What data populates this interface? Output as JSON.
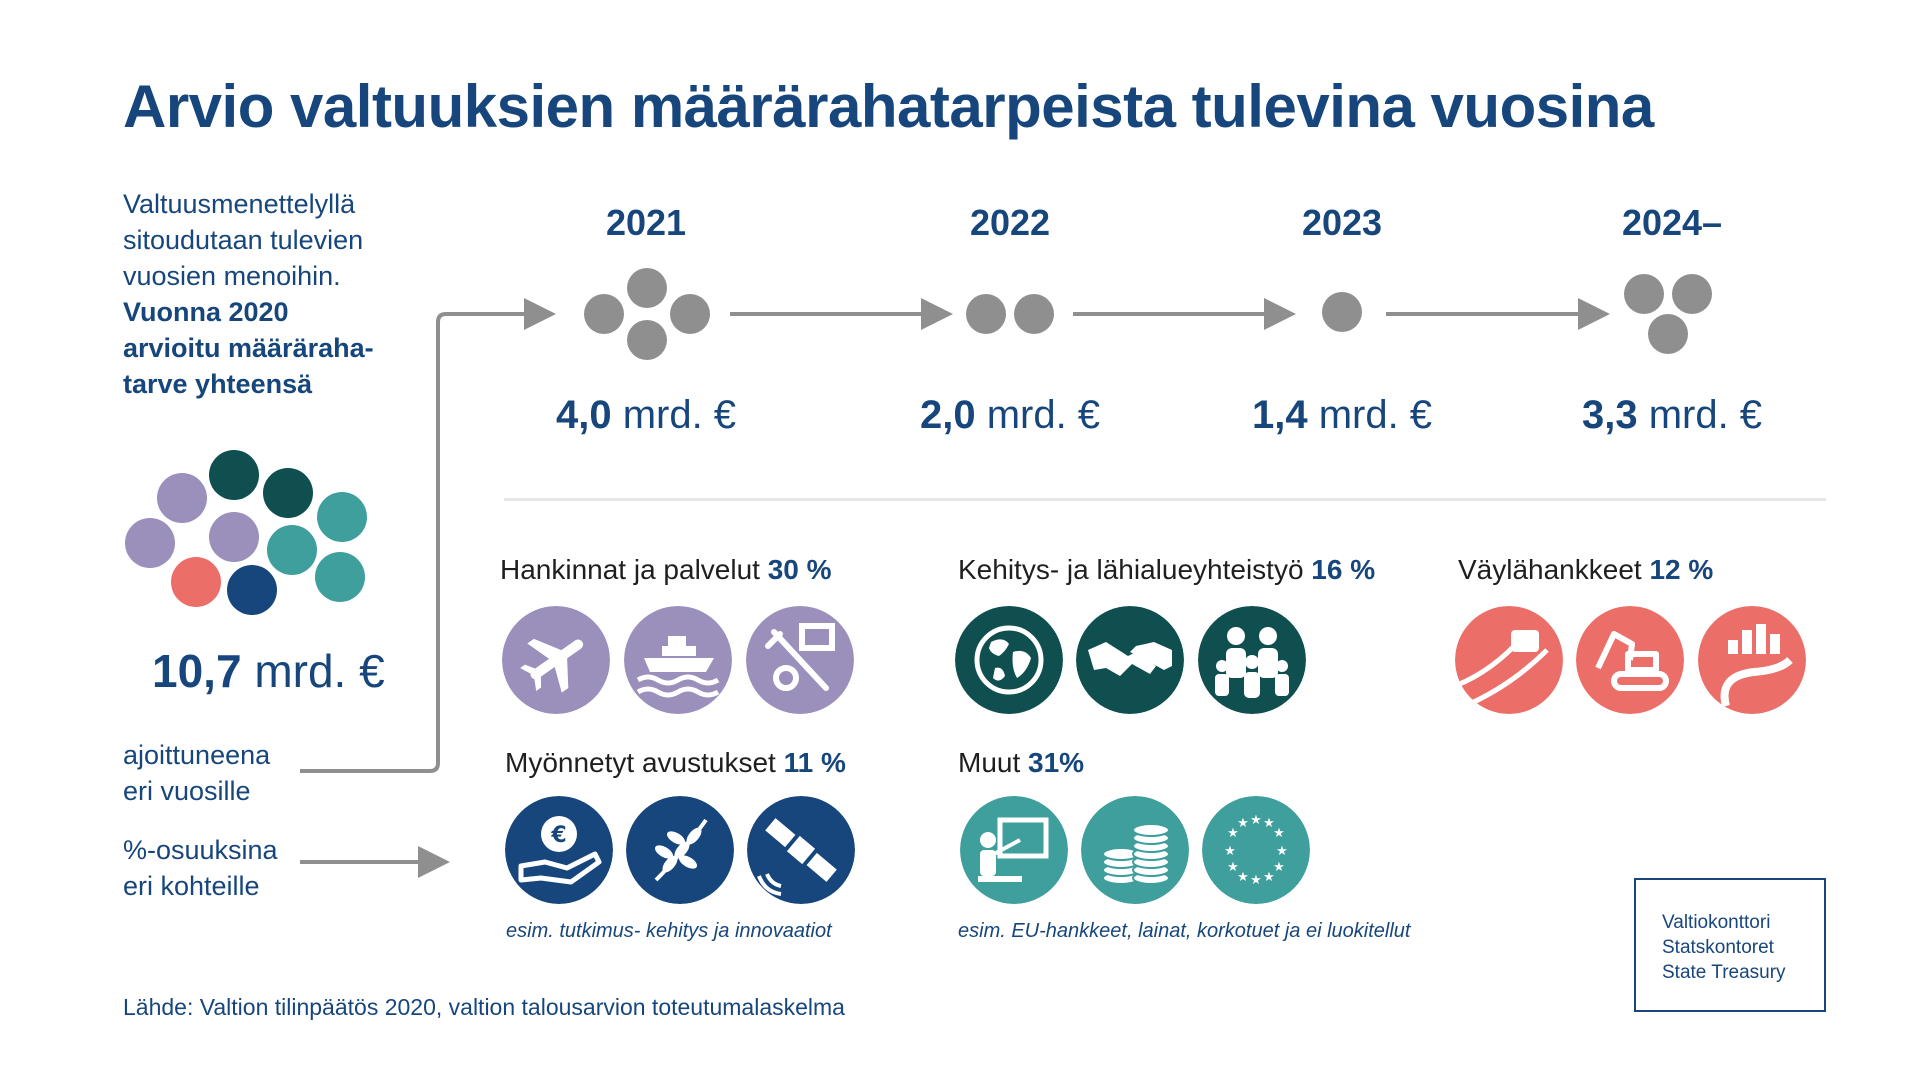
{
  "title": "Arvio valtuuksien määrärahatarpeista tulevina vuosina",
  "intro": {
    "line1": "Valtuusmenettelyllä",
    "line2": "sitoudutaan tulevien",
    "line3": "vuosien menoihin.",
    "bold1": "Vuonna 2020",
    "bold2": "arvioitu määräraha-",
    "bold3": "tarve yhteensä"
  },
  "total": {
    "value": "10,7",
    "unit": "mrd. €"
  },
  "side_labels": {
    "timed_line1": "ajoittuneena",
    "timed_line2": "eri vuosille",
    "share_line1": "%-osuuksina",
    "share_line2": "eri kohteille"
  },
  "years": [
    {
      "year": "2021",
      "value": "4,0",
      "unit": "mrd. €",
      "dots": 4
    },
    {
      "year": "2022",
      "value": "2,0",
      "unit": "mrd. €",
      "dots": 2
    },
    {
      "year": "2023",
      "value": "1,4",
      "unit": "mrd. €",
      "dots": 1
    },
    {
      "year": "2024–",
      "value": "3,3",
      "unit": "mrd. €",
      "dots": 3
    }
  ],
  "categories": {
    "procurement": {
      "label": "Hankinnat ja palvelut",
      "pct": "30 %"
    },
    "development": {
      "label": "Kehitys- ja lähialueyhteistyö",
      "pct": "16 %"
    },
    "waterways": {
      "label": "Väylähankkeet",
      "pct": "12 %"
    },
    "grants": {
      "label": "Myönnetyt avustukset",
      "pct": "11 %"
    },
    "other": {
      "label": "Muut",
      "pct": "31%"
    }
  },
  "notes": {
    "grants": "esim. tutkimus- kehitys ja innovaatiot",
    "other": "esim. EU-hankkeet, lainat, korkotuet ja ei luokitellut"
  },
  "source": "Lähde: Valtion tilinpäätös 2020, valtion talousarvion toteutumalaskelma",
  "logo": {
    "line1": "Valtiokonttori",
    "line2": "Statskontoret",
    "line3": "State Treasury"
  },
  "colors": {
    "title_blue": "#17467c",
    "grey_dot": "#8f8f8f",
    "purple": "#9b8fbb",
    "dark_teal": "#0f4f4f",
    "teal": "#3f9f9c",
    "coral": "#ec6e68",
    "navy": "#17467c",
    "arrow": "#8f8f8f"
  }
}
